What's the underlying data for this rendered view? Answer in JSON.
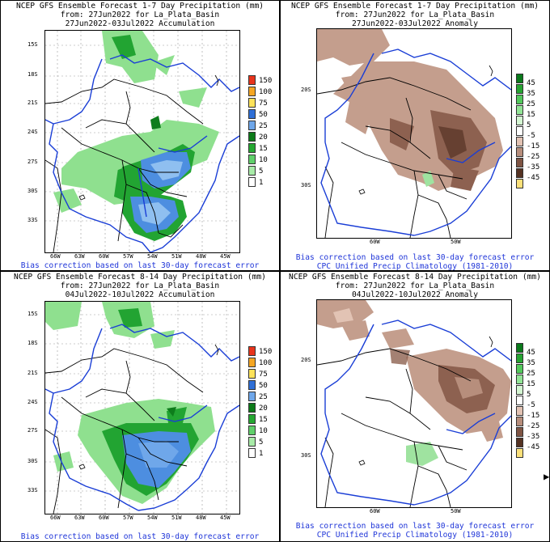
{
  "panels": [
    {
      "title1": "NCEP GFS Ensemble Forecast 1-7 Day Precipitation (mm)",
      "title2": "from: 27Jun2022   for La_Plata_Basin",
      "title3": "27Jun2022-03Jul2022 Accumulation",
      "footer1": "Bias correction based on last 30-day forecast error",
      "footer2": ""
    },
    {
      "title1": "NCEP GFS Ensemble Forecast 1-7 Day Precipitation (mm)",
      "title2": "from: 27Jun2022   for La_Plata_Basin",
      "title3": "27Jun2022-03Jul2022 Anomaly",
      "footer1": "Bias correction based on last 30-day forecast error",
      "footer2": "CPC Unified Precip Climatology (1981-2010)"
    },
    {
      "title1": "NCEP GFS Ensemble Forecast 8-14 Day Precipitation (mm)",
      "title2": "from: 27Jun2022   for La_Plata_Basin",
      "title3": "04Jul2022-10Jul2022 Accumulation",
      "footer1": "Bias correction based on last 30-day forecast error",
      "footer2": ""
    },
    {
      "title1": "NCEP GFS Ensemble Forecast 8-14 Day Precipitation (mm)",
      "title2": "from: 27Jun2022   for La_Plata_Basin",
      "title3": "04Jul2022-10Jul2022 Anomaly",
      "footer1": "Bias correction based on last 30-day forecast error",
      "footer2": "CPC Unified Precip Climatology (1981-2010)"
    }
  ],
  "accum_axes": {
    "lat_labels": [
      "15S",
      "18S",
      "21S",
      "24S",
      "27S",
      "30S",
      "33S"
    ],
    "lon_labels": [
      "66W",
      "63W",
      "60W",
      "57W",
      "54W",
      "51W",
      "48W",
      "45W"
    ]
  },
  "anom_axes": {
    "lat_labels": [
      "20S",
      "30S"
    ],
    "lon_labels": [
      "60W",
      "50W"
    ]
  },
  "accum_legend": [
    {
      "label": "150",
      "color": "#e8341c"
    },
    {
      "label": "100",
      "color": "#f5a623"
    },
    {
      "label": "75",
      "color": "#fde25a"
    },
    {
      "label": "50",
      "color": "#2f6fd6"
    },
    {
      "label": "25",
      "color": "#6fa7ea"
    },
    {
      "label": "20",
      "color": "#0c7a18"
    },
    {
      "label": "15",
      "color": "#25a832"
    },
    {
      "label": "10",
      "color": "#5fd06a"
    },
    {
      "label": "5",
      "color": "#a8eba8"
    },
    {
      "label": "1",
      "color": "#ffffff"
    }
  ],
  "anom_legend": [
    {
      "label": "45",
      "color": "#0b7a1c"
    },
    {
      "label": "35",
      "color": "#26a432"
    },
    {
      "label": "25",
      "color": "#52c95c"
    },
    {
      "label": "15",
      "color": "#92e596"
    },
    {
      "label": "5",
      "color": "#d4f6d2"
    },
    {
      "label": "-5",
      "color": "#ffffff"
    },
    {
      "label": "-15",
      "color": "#e2c3b4"
    },
    {
      "label": "-25",
      "color": "#b78e7c"
    },
    {
      "label": "-35",
      "color": "#7f5443"
    },
    {
      "label": "-45",
      "color": "#553223"
    },
    {
      "label": "",
      "color": "#fbe07a"
    }
  ],
  "colors": {
    "river": "#1a3ed6",
    "border": "#000000",
    "accum_blue": "#4d8ee0",
    "accum_lightblue": "#8fbff0",
    "accum_green": "#22a432",
    "accum_lightgreen": "#8fe08f",
    "accum_darkgreen": "#0e7d1c",
    "anom_brown": "#c49e8d",
    "anom_darkbrown": "#8d6150",
    "anom_green": "#9fe3a0",
    "grid": "#9a9a9a"
  },
  "scroll_arrow": "▶"
}
